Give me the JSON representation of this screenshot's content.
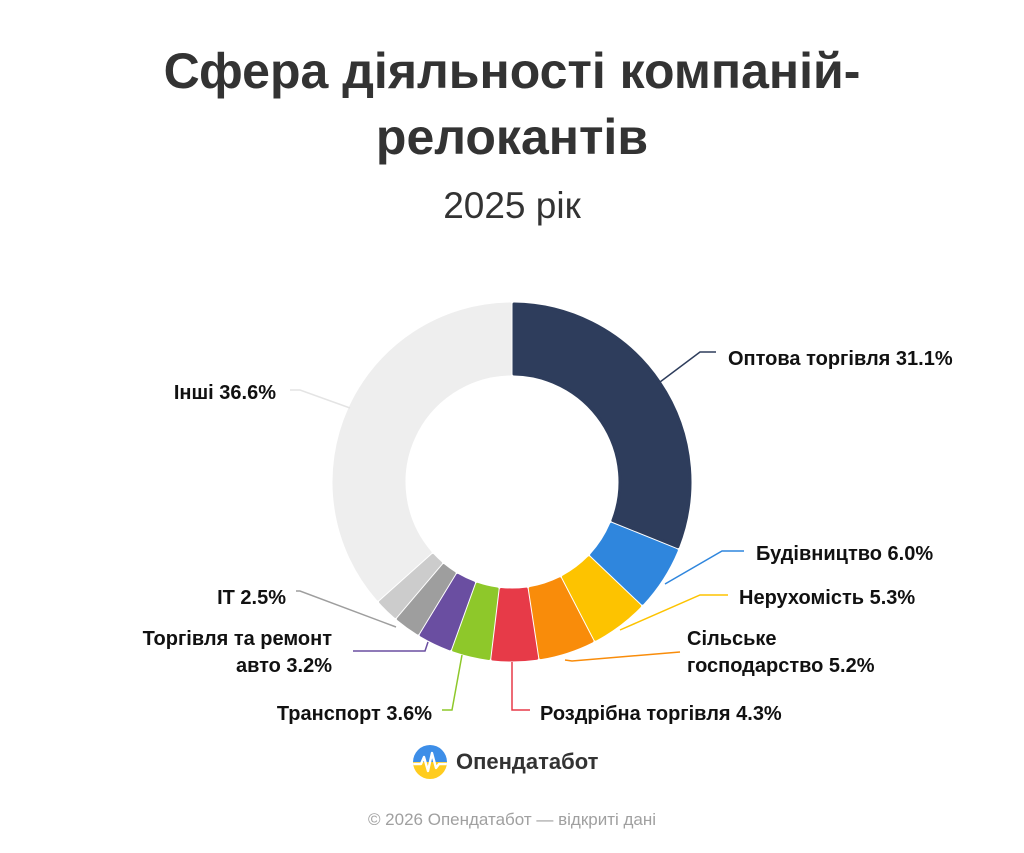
{
  "header": {
    "title_line1": "Сфера діяльності компаній-",
    "title_line2": "релокантів",
    "subtitle": "2025 рік"
  },
  "chart_data": {
    "type": "pie",
    "donut": true,
    "title": "Сфера діяльності компаній-релокантів",
    "subtitle": "2025 рік",
    "unit": "%",
    "slices": [
      {
        "label": "Оптова торгівля",
        "value": 31.1,
        "color": "#2e3d5c",
        "text": [
          "Оптова торгівля 31.1%"
        ]
      },
      {
        "label": "Будівництво",
        "value": 6.0,
        "color": "#2f86dd",
        "text": [
          "Будівництво 6.0%"
        ]
      },
      {
        "label": "Нерухомість",
        "value": 5.3,
        "color": "#fdc300",
        "text": [
          "Нерухомість 5.3%"
        ]
      },
      {
        "label": "Сільське господарство",
        "value": 5.2,
        "color": "#f98c0a",
        "text": [
          "Сільське",
          "господарство 5.2%"
        ]
      },
      {
        "label": "Роздрібна торгівля",
        "value": 4.3,
        "color": "#e73a48",
        "text": [
          "Роздрібна торгівля 4.3%"
        ]
      },
      {
        "label": "Транспорт",
        "value": 3.6,
        "color": "#8ec82a",
        "text": [
          "Транспорт 3.6%"
        ]
      },
      {
        "label": "Торгівля та ремонт авто",
        "value": 3.2,
        "color": "#6a4ea1",
        "text": [
          "Торгівля та ремонт",
          "авто 3.2%"
        ]
      },
      {
        "label": "IT",
        "value": 2.5,
        "color": "#9e9e9e",
        "text": [
          "IT 2.5%"
        ]
      },
      {
        "label": "",
        "value": 2.2,
        "color": "#cccccc",
        "text": []
      },
      {
        "label": "Інші",
        "value": 36.6,
        "color": "#eeeeee",
        "text": [
          "Інші 36.6%"
        ]
      }
    ]
  },
  "brand": {
    "name": "Опендатабот"
  },
  "footer": {
    "text": "© 2026 Опендатабот — відкриті дані"
  }
}
